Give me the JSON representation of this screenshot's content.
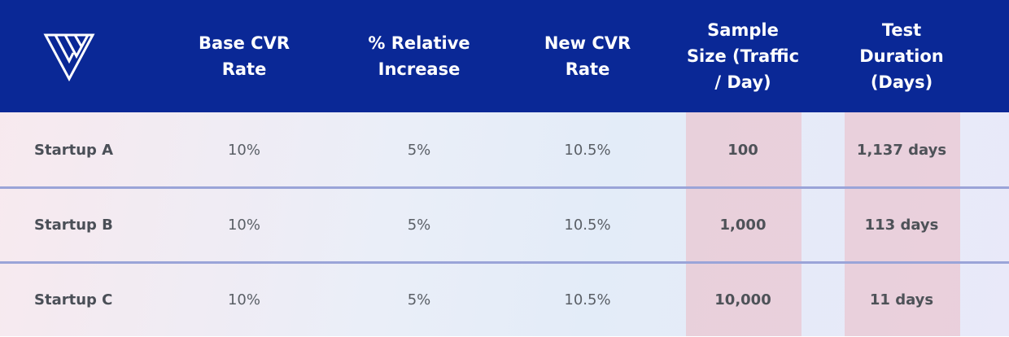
{
  "table": {
    "header": [
      [
        "Base CVR",
        "Rate"
      ],
      [
        "% Relative",
        "Increase"
      ],
      [
        "New CVR",
        "Rate"
      ],
      [
        "Sample",
        "Size (Traffic",
        "/ Day)"
      ],
      [
        "Test",
        "Duration",
        "(Days)"
      ]
    ],
    "rows": [
      [
        "Startup A",
        "10%",
        "5%",
        "10.5%",
        "100",
        "1,137 days"
      ],
      [
        "Startup B",
        "10%",
        "5%",
        "10.5%",
        "1,000",
        "113 days"
      ],
      [
        "Startup C",
        "10%",
        "5%",
        "10.5%",
        "10,000",
        "11 days"
      ]
    ]
  }
}
